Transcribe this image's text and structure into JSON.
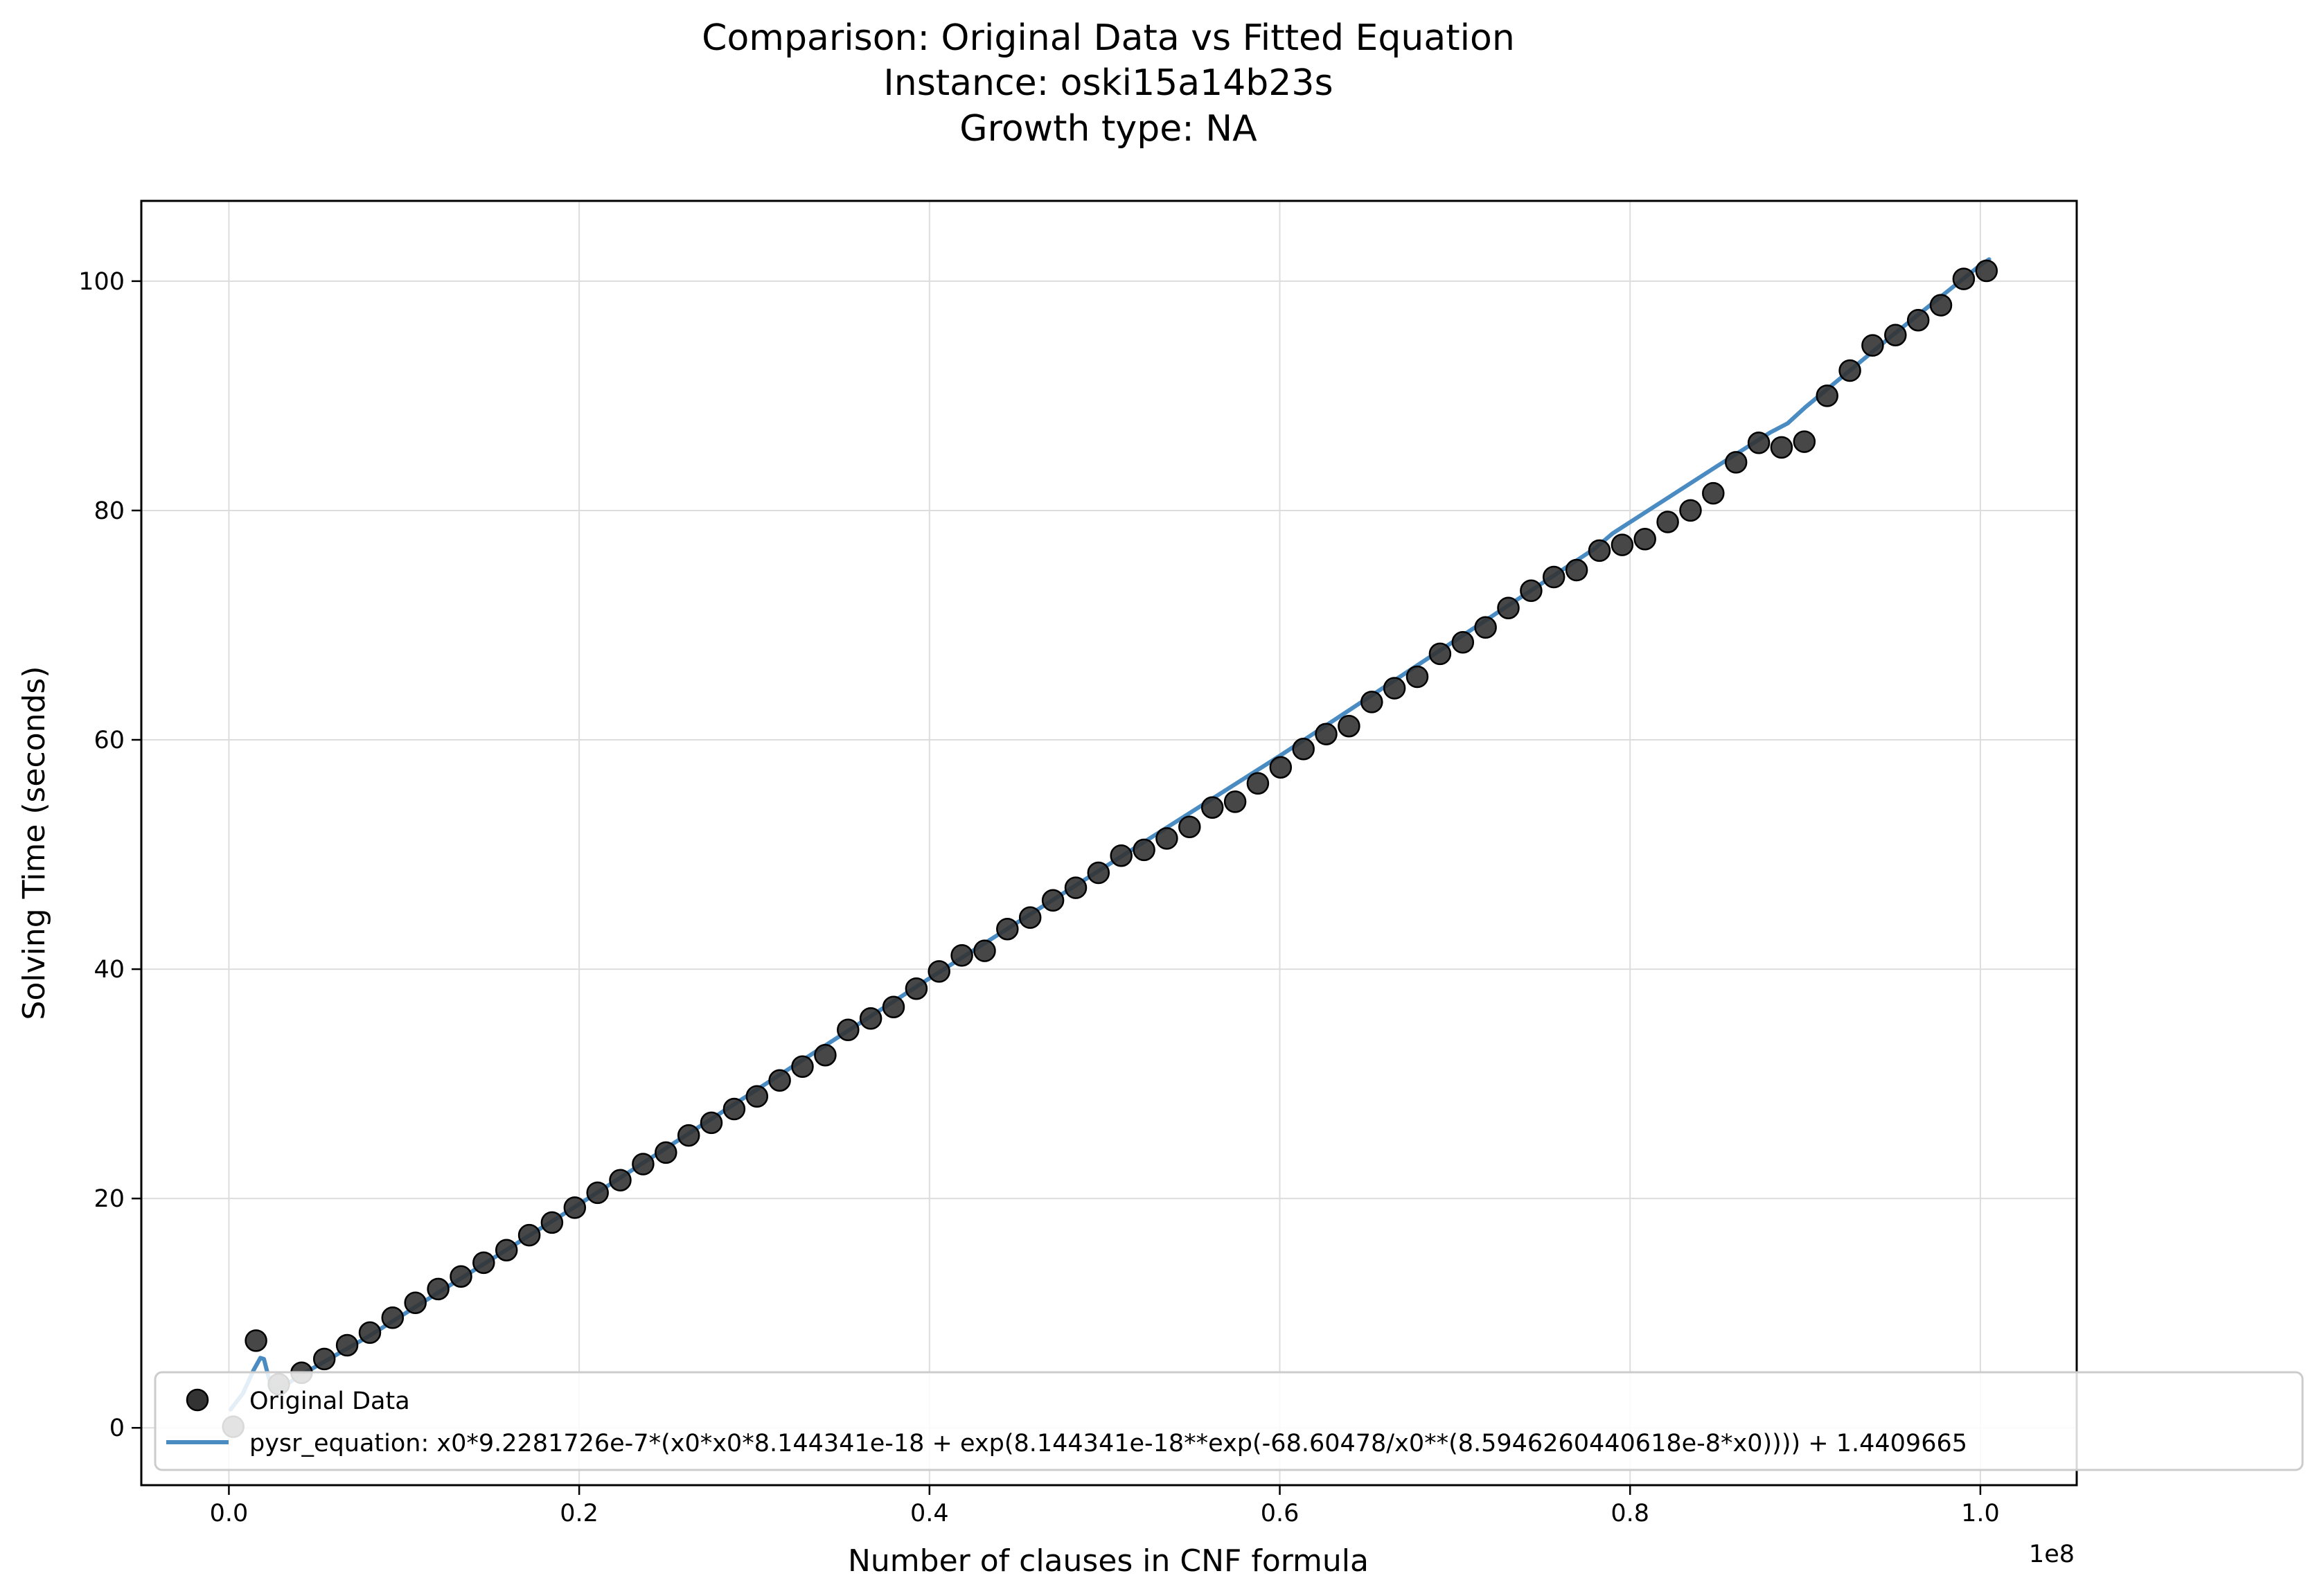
{
  "chart_data": {
    "type": "scatter",
    "title_lines": [
      "Comparison: Original Data vs Fitted Equation",
      "Instance: oski15a14b23s",
      "Growth type: NA"
    ],
    "xlabel": "Number of clauses in CNF formula",
    "ylabel": "Solving Time (seconds)",
    "x_offset_label": "1e8",
    "xlim": [
      -0.05,
      1.055
    ],
    "ylim": [
      -5,
      107
    ],
    "xticks": [
      0.0,
      0.2,
      0.4,
      0.6,
      0.8,
      1.0
    ],
    "xtick_labels": [
      "0.0",
      "0.2",
      "0.4",
      "0.6",
      "0.8",
      "1.0"
    ],
    "yticks": [
      0,
      20,
      40,
      60,
      80,
      100
    ],
    "ytick_labels": [
      "0",
      "20",
      "40",
      "60",
      "80",
      "100"
    ],
    "grid": true,
    "legend_position": "lower-left",
    "legend": {
      "scatter_label": "Original Data",
      "line_label": "pysr_equation: x0*9.2281726e-7*(x0*x0*8.144341e-18 + exp(8.144341e-18**exp(-68.60478/x0**(8.5946260440618e-8*x0)))) + 1.4409665"
    },
    "colors": {
      "points": "#333333",
      "line": "#4a8bc2"
    },
    "series": [
      {
        "name": "Original Data",
        "kind": "scatter",
        "x": [
          0.0025,
          0.0155,
          0.0285,
          0.0415,
          0.0545,
          0.0675,
          0.0805,
          0.0935,
          0.1065,
          0.1195,
          0.1325,
          0.1455,
          0.1585,
          0.1715,
          0.1845,
          0.1975,
          0.2105,
          0.2235,
          0.2365,
          0.2495,
          0.2625,
          0.2755,
          0.2885,
          0.3015,
          0.3145,
          0.3275,
          0.3405,
          0.3535,
          0.3665,
          0.3795,
          0.3925,
          0.4055,
          0.4185,
          0.4315,
          0.4445,
          0.4575,
          0.4705,
          0.4835,
          0.4965,
          0.5095,
          0.5225,
          0.5355,
          0.5485,
          0.5615,
          0.5745,
          0.5875,
          0.6005,
          0.6135,
          0.6265,
          0.6395,
          0.6525,
          0.6655,
          0.6785,
          0.6915,
          0.7045,
          0.7175,
          0.7305,
          0.7435,
          0.7565,
          0.7695,
          0.7825,
          0.7955,
          0.8085,
          0.8215,
          0.8345,
          0.8475,
          0.8605,
          0.8735,
          0.8865,
          0.8995,
          0.9125,
          0.9255,
          0.9385,
          0.9515,
          0.9645,
          0.9775,
          0.9905,
          1.0035
        ],
        "y": [
          0.1,
          7.6,
          3.8,
          4.8,
          6.0,
          7.2,
          8.3,
          9.6,
          10.9,
          12.1,
          13.2,
          14.4,
          15.5,
          16.8,
          17.9,
          19.2,
          20.5,
          21.6,
          23.0,
          24.0,
          25.5,
          26.6,
          27.8,
          28.9,
          30.3,
          31.5,
          32.5,
          34.7,
          35.7,
          36.7,
          38.3,
          39.8,
          41.2,
          41.6,
          43.5,
          44.5,
          46.0,
          47.1,
          48.4,
          49.9,
          50.4,
          51.4,
          52.4,
          54.1,
          54.6,
          56.2,
          57.6,
          59.2,
          60.5,
          61.2,
          63.3,
          64.5,
          65.5,
          67.5,
          68.5,
          69.8,
          71.5,
          73.0,
          74.2,
          74.8,
          76.5,
          77.0,
          77.5,
          79.0,
          80.0,
          81.5,
          84.2,
          85.9,
          85.5,
          86.0,
          90.0,
          92.2,
          94.4,
          95.3,
          96.6,
          97.9,
          100.2,
          100.9
        ]
      },
      {
        "name": "pysr_equation: x0*9.2281726e-7*(x0*x0*8.144341e-18 + exp(8.144341e-18**exp(-68.60478/x0**(8.5946260440618e-8*x0)))) + 1.4409665",
        "kind": "line",
        "x": [
          0.001,
          0.008,
          0.014,
          0.018,
          0.02,
          0.022,
          0.025,
          0.03,
          0.04,
          0.08,
          0.2,
          0.4,
          0.6,
          0.78,
          0.79,
          0.85,
          0.88,
          0.89,
          0.9,
          0.95,
          1.0,
          1.005
        ],
        "y": [
          1.6,
          3.0,
          5.0,
          6.1,
          6.0,
          4.8,
          3.2,
          3.5,
          4.5,
          8.0,
          19.5,
          39.2,
          58.6,
          76.7,
          78.0,
          83.9,
          86.8,
          87.6,
          89.0,
          95.3,
          101.4,
          101.9
        ]
      }
    ]
  }
}
